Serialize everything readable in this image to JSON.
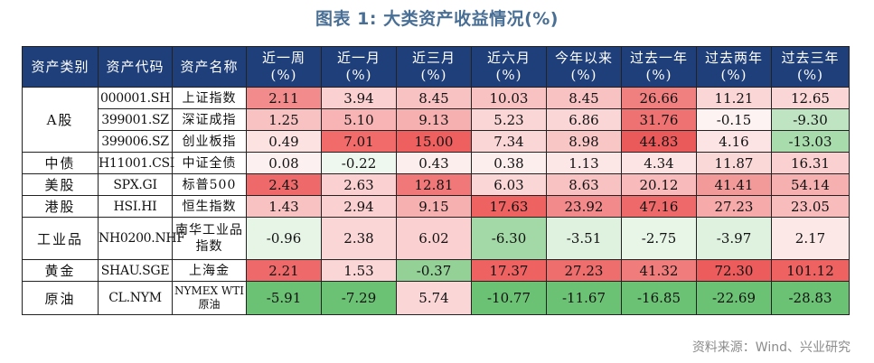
{
  "title": "图表 1:  大类资产收益情况(%)",
  "source": "资料来源：Wind、兴业研究",
  "headers": {
    "category": "资产类别",
    "code": "资产代码",
    "name": "资产名称",
    "periods": [
      {
        "line1": "近一周",
        "line2": "(%)"
      },
      {
        "line1": "近一月",
        "line2": "(%)"
      },
      {
        "line1": "近三月",
        "line2": "(%)"
      },
      {
        "line1": "近六月",
        "line2": "(%)"
      },
      {
        "line1": "今年以来",
        "line2": "(%)"
      },
      {
        "line1": "过去一年",
        "line2": "(%)"
      },
      {
        "line1": "过去两年",
        "line2": "(%)"
      },
      {
        "line1": "过去三年",
        "line2": "(%)"
      }
    ]
  },
  "groups": [
    {
      "label": "A股",
      "rows": [
        {
          "code": "000001.SH",
          "name": "上证指数",
          "values": [
            "2.11",
            "3.94",
            "8.45",
            "10.03",
            "8.45",
            "26.66",
            "11.21",
            "12.65"
          ],
          "colors": [
            "#f28c8c",
            "#fbd0d0",
            "#f9c2c2",
            "#f9c2c2",
            "#f9c2c2",
            "#f08080",
            "#fbd6d6",
            "#fbd6d6"
          ]
        },
        {
          "code": "399001.SZ",
          "name": "深证成指",
          "values": [
            "1.25",
            "5.10",
            "9.13",
            "5.23",
            "6.86",
            "31.76",
            "-0.15",
            "-9.30"
          ],
          "colors": [
            "#f9c2c2",
            "#f8b4b4",
            "#f7b0b0",
            "#fbd6d6",
            "#fbd6d6",
            "#ee7272",
            "#fdf3f3",
            "#bfe4c2"
          ]
        },
        {
          "code": "399006.SZ",
          "name": "创业板指",
          "values": [
            "0.49",
            "7.01",
            "15.00",
            "7.34",
            "8.98",
            "44.83",
            "4.16",
            "-13.03"
          ],
          "colors": [
            "#fde2e2",
            "#f26b6b",
            "#ee6060",
            "#fbd6d6",
            "#f9c6c6",
            "#eb5a5a",
            "#fde4e4",
            "#a9dcad"
          ]
        }
      ]
    },
    {
      "label": "中债",
      "rows": [
        {
          "code": "H11001.CSI",
          "name": "中证全债",
          "values": [
            "0.08",
            "-0.22",
            "0.43",
            "0.38",
            "1.13",
            "4.34",
            "11.87",
            "16.31"
          ],
          "colors": [
            "#fdf0f0",
            "#eef8ee",
            "#fdeeee",
            "#fdeeee",
            "#fde6e6",
            "#fde4e4",
            "#fbd8d8",
            "#fbd0d0"
          ]
        }
      ]
    },
    {
      "label": "美股",
      "rows": [
        {
          "code": "SPX.GI",
          "name": "标普500",
          "values": [
            "2.43",
            "2.63",
            "12.81",
            "6.03",
            "8.63",
            "20.12",
            "41.41",
            "54.14"
          ],
          "colors": [
            "#ee6a6a",
            "#fbd0d0",
            "#f07878",
            "#fbd6d6",
            "#f9c2c2",
            "#f8baba",
            "#f29a9a",
            "#f7b0b0"
          ]
        }
      ]
    },
    {
      "label": "港股",
      "rows": [
        {
          "code": "HSI.HI",
          "name": "恒生指数",
          "values": [
            "1.43",
            "2.94",
            "9.15",
            "17.63",
            "23.92",
            "47.16",
            "27.23",
            "23.05"
          ],
          "colors": [
            "#f9c2c2",
            "#fbd0d0",
            "#f7b0b0",
            "#ee6262",
            "#f2898a",
            "#ee6a6a",
            "#f6aaaa",
            "#f8bcbc"
          ]
        }
      ]
    },
    {
      "label": "工业品",
      "rows": [
        {
          "code": "NH0200.NHF",
          "name": "南华工业品指数",
          "small": false,
          "values": [
            "-0.96",
            "2.38",
            "6.02",
            "-6.30",
            "-3.51",
            "-2.75",
            "-3.97",
            "2.17"
          ],
          "colors": [
            "#e6f5e6",
            "#fbd6d6",
            "#fbd0d0",
            "#a3d9a6",
            "#dff1df",
            "#e8f6e8",
            "#dff1df",
            "#fde8e8"
          ]
        }
      ]
    },
    {
      "label": "黄金",
      "rows": [
        {
          "code": "SHAU.SGE",
          "name": "上海金",
          "values": [
            "2.21",
            "1.53",
            "-0.37",
            "17.37",
            "27.23",
            "41.32",
            "72.30",
            "101.12"
          ],
          "colors": [
            "#ee6a6a",
            "#fbd6d6",
            "#93d197",
            "#ee6262",
            "#ee6e6e",
            "#f07c7c",
            "#ec5c5c",
            "#ee6262"
          ]
        }
      ]
    },
    {
      "label": "原油",
      "rows": [
        {
          "code": "CL.NYM",
          "name": "NYMEX WTI原油",
          "small": true,
          "values": [
            "-5.91",
            "-7.29",
            "5.74",
            "-10.77",
            "-11.67",
            "-16.85",
            "-22.69",
            "-28.83"
          ],
          "colors": [
            "#6cc274",
            "#6cc274",
            "#fbd6d6",
            "#6cc274",
            "#6cc274",
            "#6cc274",
            "#6cc274",
            "#6cc274"
          ]
        }
      ]
    }
  ]
}
